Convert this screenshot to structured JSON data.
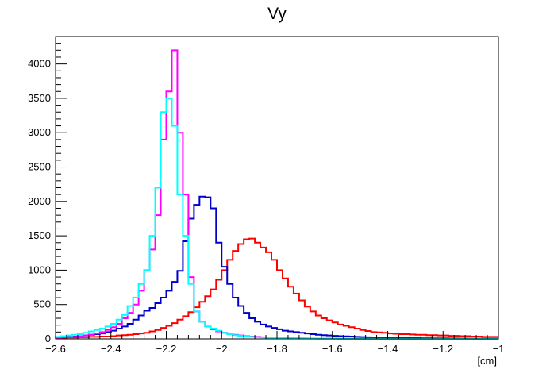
{
  "chart_data": {
    "type": "line",
    "title": "Vy",
    "xlabel": "[cm]",
    "ylabel": "",
    "xlim": [
      -2.6,
      -1.0
    ],
    "ylim": [
      0,
      4400
    ],
    "x_ticks": [
      -2.6,
      -2.4,
      -2.2,
      -2.0,
      -1.8,
      -1.6,
      -1.4,
      -1.2,
      -1.0
    ],
    "x_tick_labels": [
      "−2.6",
      "−2.4",
      "−2.2",
      "−2",
      "−1.8",
      "−1.6",
      "−1.4",
      "−1.2",
      "−1"
    ],
    "y_ticks": [
      0,
      500,
      1000,
      1500,
      2000,
      2500,
      3000,
      3500,
      4000
    ],
    "y_tick_labels": [
      "0",
      "500",
      "1000",
      "1500",
      "2000",
      "2500",
      "3000",
      "3500",
      "4000"
    ],
    "grid": false,
    "bin_edges": [
      -2.6,
      -2.58,
      -2.56,
      -2.54,
      -2.52,
      -2.5,
      -2.48,
      -2.46,
      -2.44,
      -2.42,
      -2.4,
      -2.38,
      -2.36,
      -2.34,
      -2.32,
      -2.3,
      -2.28,
      -2.26,
      -2.24,
      -2.22,
      -2.2,
      -2.18,
      -2.16,
      -2.14,
      -2.12,
      -2.1,
      -2.08,
      -2.06,
      -2.04,
      -2.02,
      -2.0,
      -1.98,
      -1.96,
      -1.94,
      -1.92,
      -1.9,
      -1.88,
      -1.86,
      -1.84,
      -1.82,
      -1.8,
      -1.78,
      -1.76,
      -1.74,
      -1.72,
      -1.7,
      -1.68,
      -1.66,
      -1.64,
      -1.62,
      -1.6,
      -1.58,
      -1.56,
      -1.54,
      -1.52,
      -1.5,
      -1.48,
      -1.46,
      -1.44,
      -1.42,
      -1.4,
      -1.38,
      -1.36,
      -1.34,
      -1.32,
      -1.3,
      -1.28,
      -1.26,
      -1.24,
      -1.22,
      -1.2,
      -1.18,
      -1.16,
      -1.14,
      -1.12,
      -1.1,
      -1.08,
      -1.06,
      -1.04,
      -1.02,
      -1.0
    ],
    "series": [
      {
        "color": "#ff0000",
        "values": [
          15,
          15,
          20,
          20,
          25,
          25,
          30,
          30,
          35,
          35,
          40,
          50,
          55,
          60,
          70,
          80,
          90,
          110,
          130,
          160,
          190,
          230,
          280,
          330,
          390,
          460,
          540,
          620,
          720,
          860,
          1000,
          1150,
          1280,
          1380,
          1450,
          1460,
          1400,
          1330,
          1260,
          1150,
          1000,
          880,
          760,
          660,
          560,
          470,
          400,
          340,
          300,
          270,
          240,
          210,
          190,
          170,
          150,
          130,
          115,
          100,
          95,
          90,
          80,
          75,
          70,
          70,
          65,
          60,
          60,
          55,
          55,
          50,
          50,
          45,
          45,
          40,
          40,
          35,
          35,
          30,
          30,
          30
        ]
      },
      {
        "color": "#0000cc",
        "values": [
          20,
          25,
          30,
          35,
          40,
          50,
          60,
          70,
          80,
          100,
          120,
          150,
          180,
          220,
          280,
          340,
          410,
          450,
          520,
          600,
          700,
          830,
          990,
          1420,
          1750,
          1950,
          2070,
          2060,
          1900,
          1400,
          1050,
          800,
          600,
          480,
          380,
          300,
          250,
          210,
          180,
          160,
          140,
          120,
          110,
          100,
          90,
          80,
          70,
          60,
          55,
          50,
          45,
          40,
          38,
          35,
          30,
          28,
          25,
          22,
          20,
          18,
          16,
          15,
          14,
          13,
          12,
          11,
          10,
          10,
          9,
          8,
          8,
          7,
          7,
          6,
          6,
          5,
          5,
          5,
          5,
          5
        ]
      },
      {
        "color": "#ff00ff",
        "values": [
          15,
          20,
          25,
          30,
          40,
          50,
          60,
          80,
          100,
          130,
          170,
          220,
          300,
          380,
          500,
          700,
          1000,
          1300,
          1800,
          2900,
          3600,
          4200,
          3000,
          2100,
          900,
          400,
          250,
          180,
          140,
          110,
          90,
          70,
          60,
          50,
          40,
          35,
          30,
          25,
          20,
          18,
          15,
          12,
          10,
          9,
          8,
          7,
          6,
          5,
          5,
          4,
          4,
          3,
          3,
          3,
          2,
          2,
          2,
          2,
          2,
          1,
          1,
          1,
          1,
          1,
          1,
          1,
          1,
          1,
          1,
          1,
          1,
          1,
          1,
          1,
          1,
          1,
          1,
          1,
          1,
          1
        ]
      },
      {
        "color": "#00ffff",
        "values": [
          30,
          40,
          50,
          60,
          70,
          90,
          110,
          130,
          150,
          180,
          220,
          280,
          350,
          480,
          600,
          800,
          1000,
          1500,
          2200,
          3300,
          3500,
          3100,
          2100,
          1500,
          800,
          400,
          250,
          180,
          150,
          120,
          90,
          70,
          55,
          45,
          35,
          30,
          25,
          20,
          18,
          15,
          12,
          10,
          9,
          8,
          7,
          6,
          5,
          5,
          4,
          4,
          3,
          3,
          3,
          2,
          2,
          2,
          2,
          2,
          1,
          1,
          1,
          1,
          1,
          1,
          1,
          1,
          1,
          1,
          1,
          1,
          1,
          1,
          1,
          1,
          1,
          1,
          1,
          1,
          1,
          1
        ]
      }
    ]
  }
}
